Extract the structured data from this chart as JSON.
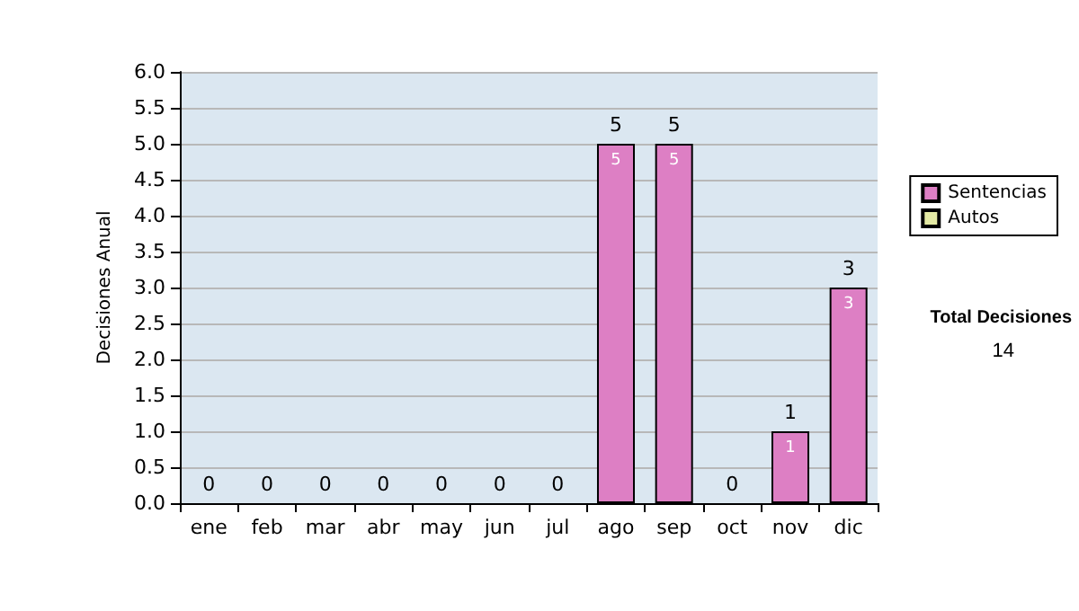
{
  "chart_data": {
    "type": "bar",
    "stacked": true,
    "ylabel": "Decisiones Anual",
    "categories": [
      "ene",
      "feb",
      "mar",
      "abr",
      "may",
      "jun",
      "jul",
      "ago",
      "sep",
      "oct",
      "nov",
      "dic"
    ],
    "series": [
      {
        "name": "Sentencias",
        "color": "#dd7fc4",
        "values": [
          0,
          0,
          0,
          0,
          0,
          0,
          0,
          5,
          5,
          0,
          1,
          3
        ],
        "value_labels": [
          null,
          null,
          null,
          null,
          null,
          null,
          null,
          "5",
          "5",
          null,
          "1",
          "3"
        ]
      },
      {
        "name": "Autos",
        "color": "#e4eaa4",
        "values": [
          0,
          0,
          0,
          0,
          0,
          0,
          0,
          0,
          0,
          0,
          0,
          0
        ]
      }
    ],
    "totals": [
      "0",
      "0",
      "0",
      "0",
      "0",
      "0",
      "0",
      "5",
      "5",
      "0",
      "1",
      "3"
    ],
    "ylim": [
      0,
      6
    ],
    "yticks": [
      {
        "value": 0,
        "label": "0.0"
      },
      {
        "value": 0.5,
        "label": "0.5"
      },
      {
        "value": 1,
        "label": "1.0"
      },
      {
        "value": 1.5,
        "label": "1.5"
      },
      {
        "value": 2,
        "label": "2.0"
      },
      {
        "value": 2.5,
        "label": "2.5"
      },
      {
        "value": 3,
        "label": "3.0"
      },
      {
        "value": 3.5,
        "label": "3.5"
      },
      {
        "value": 4,
        "label": "4.0"
      },
      {
        "value": 4.5,
        "label": "4.5"
      },
      {
        "value": 5,
        "label": "5.0"
      },
      {
        "value": 5.5,
        "label": "5.5"
      },
      {
        "value": 6,
        "label": "6.0"
      }
    ],
    "grid": "y",
    "legend": "right",
    "annotations": [
      "Total Decisiones",
      "14"
    ]
  }
}
